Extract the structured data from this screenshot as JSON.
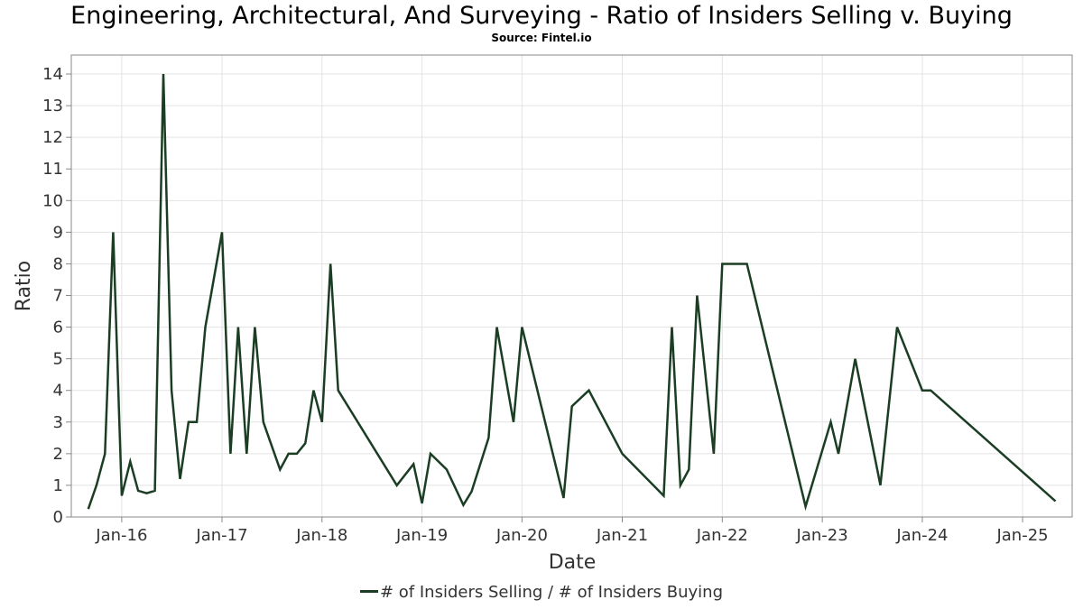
{
  "chart_data": {
    "type": "line",
    "title": "Engineering, Architectural, And Surveying - Ratio of Insiders Selling v. Buying",
    "subtitle": "Source: Fintel.io",
    "xlabel": "Date",
    "ylabel": "Ratio",
    "ylim": [
      0,
      14.6
    ],
    "xlim": [
      "2015-07-01",
      "2025-07-01"
    ],
    "yticks": [
      0,
      1,
      2,
      3,
      4,
      5,
      6,
      7,
      8,
      9,
      10,
      11,
      12,
      13,
      14
    ],
    "xticks": [
      {
        "label": "Jan-16",
        "date": "2016-01-01"
      },
      {
        "label": "Jan-17",
        "date": "2017-01-01"
      },
      {
        "label": "Jan-18",
        "date": "2018-01-01"
      },
      {
        "label": "Jan-19",
        "date": "2019-01-01"
      },
      {
        "label": "Jan-20",
        "date": "2020-01-01"
      },
      {
        "label": "Jan-21",
        "date": "2021-01-01"
      },
      {
        "label": "Jan-22",
        "date": "2022-01-01"
      },
      {
        "label": "Jan-23",
        "date": "2023-01-01"
      },
      {
        "label": "Jan-24",
        "date": "2024-01-01"
      },
      {
        "label": "Jan-25",
        "date": "2025-01-01"
      }
    ],
    "grid": true,
    "legend_position": "bottom-center",
    "series": [
      {
        "name": "# of Insiders Selling / # of Insiders Buying",
        "color": "#1a3d23",
        "points": [
          [
            "2015-09-01",
            0.25
          ],
          [
            "2015-10-01",
            1.0
          ],
          [
            "2015-11-01",
            2.0
          ],
          [
            "2015-12-01",
            9.0
          ],
          [
            "2016-01-01",
            0.67
          ],
          [
            "2016-02-01",
            1.75
          ],
          [
            "2016-03-01",
            0.83
          ],
          [
            "2016-04-01",
            0.75
          ],
          [
            "2016-05-01",
            0.83
          ],
          [
            "2016-06-01",
            14.0
          ],
          [
            "2016-07-01",
            4.0
          ],
          [
            "2016-08-01",
            1.2
          ],
          [
            "2016-09-01",
            3.0
          ],
          [
            "2016-10-01",
            3.0
          ],
          [
            "2016-11-01",
            6.0
          ],
          [
            "2017-01-01",
            9.0
          ],
          [
            "2017-02-01",
            2.0
          ],
          [
            "2017-03-01",
            6.0
          ],
          [
            "2017-04-01",
            2.0
          ],
          [
            "2017-05-01",
            6.0
          ],
          [
            "2017-06-01",
            3.0
          ],
          [
            "2017-08-01",
            1.5
          ],
          [
            "2017-09-01",
            2.0
          ],
          [
            "2017-10-01",
            2.0
          ],
          [
            "2017-11-01",
            2.33
          ],
          [
            "2017-12-01",
            4.0
          ],
          [
            "2018-01-01",
            3.0
          ],
          [
            "2018-02-01",
            8.0
          ],
          [
            "2018-03-01",
            4.0
          ],
          [
            "2018-10-01",
            1.0
          ],
          [
            "2018-12-01",
            1.67
          ],
          [
            "2019-01-01",
            0.43
          ],
          [
            "2019-02-01",
            2.0
          ],
          [
            "2019-04-01",
            1.5
          ],
          [
            "2019-06-01",
            0.38
          ],
          [
            "2019-07-01",
            0.8
          ],
          [
            "2019-09-01",
            2.5
          ],
          [
            "2019-10-01",
            6.0
          ],
          [
            "2019-12-01",
            3.0
          ],
          [
            "2020-01-01",
            6.0
          ],
          [
            "2020-06-01",
            0.6
          ],
          [
            "2020-07-01",
            3.5
          ],
          [
            "2020-09-01",
            4.0
          ],
          [
            "2021-01-01",
            2.0
          ],
          [
            "2021-06-01",
            0.67
          ],
          [
            "2021-07-01",
            6.0
          ],
          [
            "2021-08-01",
            1.0
          ],
          [
            "2021-09-01",
            1.5
          ],
          [
            "2021-10-01",
            7.0
          ],
          [
            "2021-12-01",
            2.0
          ],
          [
            "2022-01-01",
            8.0
          ],
          [
            "2022-04-01",
            8.0
          ],
          [
            "2022-11-01",
            0.33
          ],
          [
            "2023-02-01",
            3.0
          ],
          [
            "2023-03-01",
            2.0
          ],
          [
            "2023-05-01",
            5.0
          ],
          [
            "2023-08-01",
            1.0
          ],
          [
            "2023-10-01",
            6.0
          ],
          [
            "2024-01-01",
            4.0
          ],
          [
            "2024-02-01",
            4.0
          ],
          [
            "2025-05-01",
            0.5
          ]
        ]
      }
    ]
  }
}
